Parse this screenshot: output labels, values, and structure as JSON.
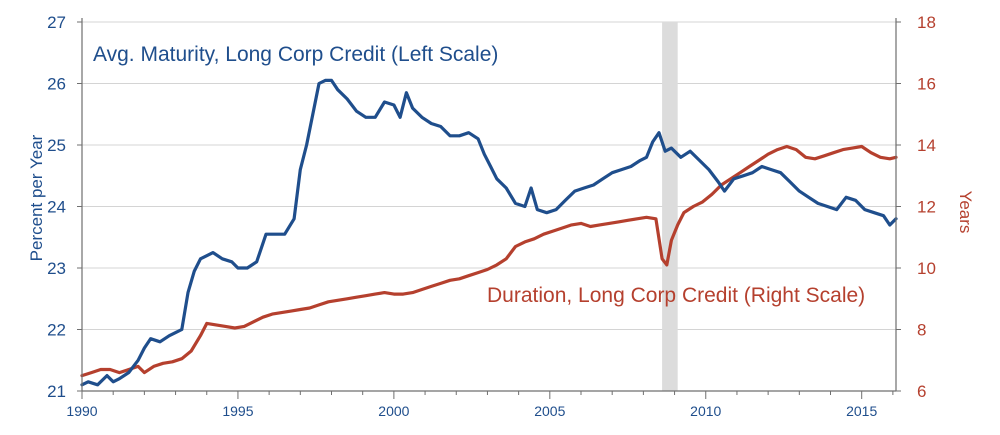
{
  "chart_data": {
    "type": "line",
    "x_range": [
      1990,
      2016.1
    ],
    "x_ticks": [
      "1990",
      "1995",
      "2000",
      "2005",
      "2010",
      "2015"
    ],
    "y_left": {
      "label": "Percent per Year",
      "range": [
        21,
        27
      ],
      "ticks": [
        "21",
        "22",
        "23",
        "24",
        "25",
        "26",
        "27"
      ]
    },
    "y_right": {
      "label": "Years",
      "range": [
        6,
        18
      ],
      "ticks": [
        "6",
        "8",
        "10",
        "12",
        "14",
        "16",
        "18"
      ]
    },
    "recession_band": [
      2008.6,
      2009.1
    ],
    "grid": true,
    "series": [
      {
        "name": "Avg. Maturity, Long Corp Credit (Left Scale)",
        "axis": "left",
        "color": "#1f4e8c",
        "points": [
          [
            1990.0,
            21.1
          ],
          [
            1990.2,
            21.15
          ],
          [
            1990.5,
            21.1
          ],
          [
            1990.8,
            21.25
          ],
          [
            1991.0,
            21.15
          ],
          [
            1991.2,
            21.2
          ],
          [
            1991.5,
            21.3
          ],
          [
            1991.8,
            21.5
          ],
          [
            1992.0,
            21.7
          ],
          [
            1992.2,
            21.85
          ],
          [
            1992.5,
            21.8
          ],
          [
            1992.8,
            21.9
          ],
          [
            1993.0,
            21.95
          ],
          [
            1993.2,
            22.0
          ],
          [
            1993.4,
            22.6
          ],
          [
            1993.6,
            22.95
          ],
          [
            1993.8,
            23.15
          ],
          [
            1994.0,
            23.2
          ],
          [
            1994.2,
            23.25
          ],
          [
            1994.5,
            23.15
          ],
          [
            1994.8,
            23.1
          ],
          [
            1995.0,
            23.0
          ],
          [
            1995.3,
            23.0
          ],
          [
            1995.6,
            23.1
          ],
          [
            1995.9,
            23.55
          ],
          [
            1996.2,
            23.55
          ],
          [
            1996.5,
            23.55
          ],
          [
            1996.8,
            23.8
          ],
          [
            1997.0,
            24.6
          ],
          [
            1997.2,
            25.0
          ],
          [
            1997.4,
            25.5
          ],
          [
            1997.6,
            26.0
          ],
          [
            1997.8,
            26.05
          ],
          [
            1998.0,
            26.05
          ],
          [
            1998.2,
            25.9
          ],
          [
            1998.5,
            25.75
          ],
          [
            1998.8,
            25.55
          ],
          [
            1999.1,
            25.45
          ],
          [
            1999.4,
            25.45
          ],
          [
            1999.7,
            25.7
          ],
          [
            2000.0,
            25.65
          ],
          [
            2000.2,
            25.45
          ],
          [
            2000.4,
            25.85
          ],
          [
            2000.6,
            25.6
          ],
          [
            2000.9,
            25.45
          ],
          [
            2001.2,
            25.35
          ],
          [
            2001.5,
            25.3
          ],
          [
            2001.8,
            25.15
          ],
          [
            2002.1,
            25.15
          ],
          [
            2002.4,
            25.2
          ],
          [
            2002.7,
            25.1
          ],
          [
            2002.9,
            24.85
          ],
          [
            2003.1,
            24.65
          ],
          [
            2003.3,
            24.45
          ],
          [
            2003.6,
            24.3
          ],
          [
            2003.9,
            24.05
          ],
          [
            2004.2,
            24.0
          ],
          [
            2004.4,
            24.3
          ],
          [
            2004.6,
            23.95
          ],
          [
            2004.9,
            23.9
          ],
          [
            2005.2,
            23.95
          ],
          [
            2005.5,
            24.1
          ],
          [
            2005.8,
            24.25
          ],
          [
            2006.1,
            24.3
          ],
          [
            2006.4,
            24.35
          ],
          [
            2006.7,
            24.45
          ],
          [
            2007.0,
            24.55
          ],
          [
            2007.3,
            24.6
          ],
          [
            2007.6,
            24.65
          ],
          [
            2007.9,
            24.75
          ],
          [
            2008.1,
            24.8
          ],
          [
            2008.3,
            25.05
          ],
          [
            2008.5,
            25.2
          ],
          [
            2008.7,
            24.9
          ],
          [
            2008.9,
            24.95
          ],
          [
            2009.2,
            24.8
          ],
          [
            2009.5,
            24.9
          ],
          [
            2009.8,
            24.75
          ],
          [
            2010.1,
            24.6
          ],
          [
            2010.4,
            24.4
          ],
          [
            2010.6,
            24.25
          ],
          [
            2010.9,
            24.45
          ],
          [
            2011.2,
            24.5
          ],
          [
            2011.5,
            24.55
          ],
          [
            2011.8,
            24.65
          ],
          [
            2012.1,
            24.6
          ],
          [
            2012.4,
            24.55
          ],
          [
            2012.7,
            24.4
          ],
          [
            2013.0,
            24.25
          ],
          [
            2013.3,
            24.15
          ],
          [
            2013.6,
            24.05
          ],
          [
            2013.9,
            24.0
          ],
          [
            2014.2,
            23.95
          ],
          [
            2014.5,
            24.15
          ],
          [
            2014.8,
            24.1
          ],
          [
            2015.1,
            23.95
          ],
          [
            2015.4,
            23.9
          ],
          [
            2015.7,
            23.85
          ],
          [
            2015.9,
            23.7
          ],
          [
            2016.1,
            23.8
          ]
        ]
      },
      {
        "name": "Duration, Long Corp Credit (Right Scale)",
        "axis": "right",
        "color": "#b5402e",
        "points": [
          [
            1990.0,
            6.5
          ],
          [
            1990.3,
            6.6
          ],
          [
            1990.6,
            6.7
          ],
          [
            1990.9,
            6.7
          ],
          [
            1991.2,
            6.6
          ],
          [
            1991.5,
            6.7
          ],
          [
            1991.8,
            6.8
          ],
          [
            1992.0,
            6.6
          ],
          [
            1992.3,
            6.8
          ],
          [
            1992.6,
            6.9
          ],
          [
            1992.9,
            6.95
          ],
          [
            1993.2,
            7.05
          ],
          [
            1993.5,
            7.3
          ],
          [
            1993.8,
            7.8
          ],
          [
            1994.0,
            8.2
          ],
          [
            1994.3,
            8.15
          ],
          [
            1994.6,
            8.1
          ],
          [
            1994.9,
            8.05
          ],
          [
            1995.2,
            8.1
          ],
          [
            1995.5,
            8.25
          ],
          [
            1995.8,
            8.4
          ],
          [
            1996.1,
            8.5
          ],
          [
            1996.4,
            8.55
          ],
          [
            1996.7,
            8.6
          ],
          [
            1997.0,
            8.65
          ],
          [
            1997.3,
            8.7
          ],
          [
            1997.6,
            8.8
          ],
          [
            1997.9,
            8.9
          ],
          [
            1998.2,
            8.95
          ],
          [
            1998.5,
            9.0
          ],
          [
            1998.8,
            9.05
          ],
          [
            1999.1,
            9.1
          ],
          [
            1999.4,
            9.15
          ],
          [
            1999.7,
            9.2
          ],
          [
            2000.0,
            9.15
          ],
          [
            2000.3,
            9.15
          ],
          [
            2000.6,
            9.2
          ],
          [
            2000.9,
            9.3
          ],
          [
            2001.2,
            9.4
          ],
          [
            2001.5,
            9.5
          ],
          [
            2001.8,
            9.6
          ],
          [
            2002.1,
            9.65
          ],
          [
            2002.4,
            9.75
          ],
          [
            2002.7,
            9.85
          ],
          [
            2003.0,
            9.95
          ],
          [
            2003.3,
            10.1
          ],
          [
            2003.6,
            10.3
          ],
          [
            2003.9,
            10.7
          ],
          [
            2004.2,
            10.85
          ],
          [
            2004.5,
            10.95
          ],
          [
            2004.8,
            11.1
          ],
          [
            2005.1,
            11.2
          ],
          [
            2005.4,
            11.3
          ],
          [
            2005.7,
            11.4
          ],
          [
            2006.0,
            11.45
          ],
          [
            2006.3,
            11.35
          ],
          [
            2006.6,
            11.4
          ],
          [
            2006.9,
            11.45
          ],
          [
            2007.2,
            11.5
          ],
          [
            2007.5,
            11.55
          ],
          [
            2007.8,
            11.6
          ],
          [
            2008.1,
            11.65
          ],
          [
            2008.4,
            11.6
          ],
          [
            2008.6,
            10.3
          ],
          [
            2008.75,
            10.1
          ],
          [
            2008.9,
            10.9
          ],
          [
            2009.1,
            11.4
          ],
          [
            2009.3,
            11.8
          ],
          [
            2009.6,
            12.0
          ],
          [
            2009.9,
            12.15
          ],
          [
            2010.2,
            12.4
          ],
          [
            2010.5,
            12.7
          ],
          [
            2010.8,
            12.9
          ],
          [
            2011.1,
            13.1
          ],
          [
            2011.4,
            13.3
          ],
          [
            2011.7,
            13.5
          ],
          [
            2012.0,
            13.7
          ],
          [
            2012.3,
            13.85
          ],
          [
            2012.6,
            13.95
          ],
          [
            2012.9,
            13.85
          ],
          [
            2013.2,
            13.6
          ],
          [
            2013.5,
            13.55
          ],
          [
            2013.8,
            13.65
          ],
          [
            2014.1,
            13.75
          ],
          [
            2014.4,
            13.85
          ],
          [
            2014.7,
            13.9
          ],
          [
            2015.0,
            13.95
          ],
          [
            2015.3,
            13.75
          ],
          [
            2015.6,
            13.6
          ],
          [
            2015.9,
            13.55
          ],
          [
            2016.1,
            13.6
          ]
        ]
      }
    ],
    "annotations": [
      {
        "text": "Avg. Maturity, Long Corp Credit (Left Scale)",
        "series": 0
      },
      {
        "text": "Duration, Long Corp Credit (Right Scale)",
        "series": 1
      }
    ]
  }
}
